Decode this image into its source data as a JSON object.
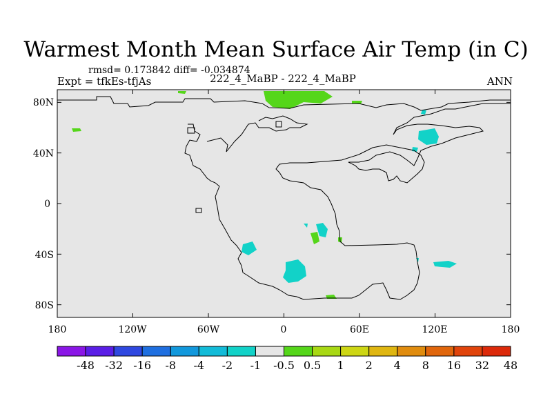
{
  "title": "Warmest Month Mean Surface Air Temp (in C)",
  "stats": "rmsd= 0.173842 diff= -0.034874",
  "experiment": "Expt = tfkEs-tfjAs",
  "center_label": "222_4_MaBP - 222_4_MaBP",
  "season": "ANN",
  "map": {
    "projection": "cylindrical equidistant",
    "lon_range": [
      -180,
      180
    ],
    "lat_range": [
      -90,
      90
    ],
    "lat_ticks": [
      80,
      40,
      0,
      -40,
      -80
    ],
    "lat_tick_labels": [
      "80N",
      "40N",
      "0",
      "40S",
      "80S"
    ],
    "lon_ticks": [
      -180,
      -120,
      -60,
      0,
      60,
      120,
      180
    ],
    "lon_tick_labels": [
      "180",
      "120W",
      "60W",
      "0",
      "60E",
      "120E",
      "180"
    ],
    "background_color": "#e6e6e6"
  },
  "colorbar": {
    "colors": [
      "#8a16e6",
      "#5a1ee6",
      "#2f48e0",
      "#1f6fe0",
      "#1298dc",
      "#13bbd8",
      "#12d2c8",
      "#e6e6e6",
      "#55d61a",
      "#a8d814",
      "#cdd614",
      "#dfb611",
      "#e08c0e",
      "#e0660c",
      "#e0440b",
      "#dc2a0a"
    ],
    "labels": [
      "-48",
      "-32",
      "-16",
      "-8",
      "-4",
      "-2",
      "-1",
      "-0.5",
      "0.5",
      "1",
      "2",
      "4",
      "8",
      "16",
      "32",
      "48"
    ]
  }
}
